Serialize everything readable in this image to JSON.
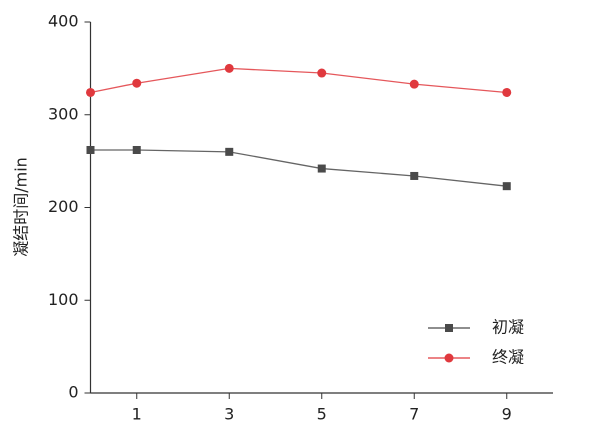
{
  "chart_data": {
    "type": "line",
    "y_label": "凝结时间/min",
    "x": [
      0,
      1,
      3,
      5,
      7,
      9
    ],
    "xlim": [
      0,
      10
    ],
    "xticks": [
      1,
      3,
      5,
      7,
      9
    ],
    "ylim": [
      0,
      400
    ],
    "yticks": [
      0,
      100,
      200,
      300,
      400
    ],
    "legend": "lower right",
    "series": [
      {
        "name": "初凝",
        "color": "#4a4a4a",
        "marker": "square",
        "values": [
          262,
          262,
          260,
          242,
          234,
          223
        ]
      },
      {
        "name": "终凝",
        "color": "#e0393e",
        "marker": "circle",
        "values": [
          324,
          334,
          350,
          345,
          333,
          324
        ]
      }
    ]
  }
}
